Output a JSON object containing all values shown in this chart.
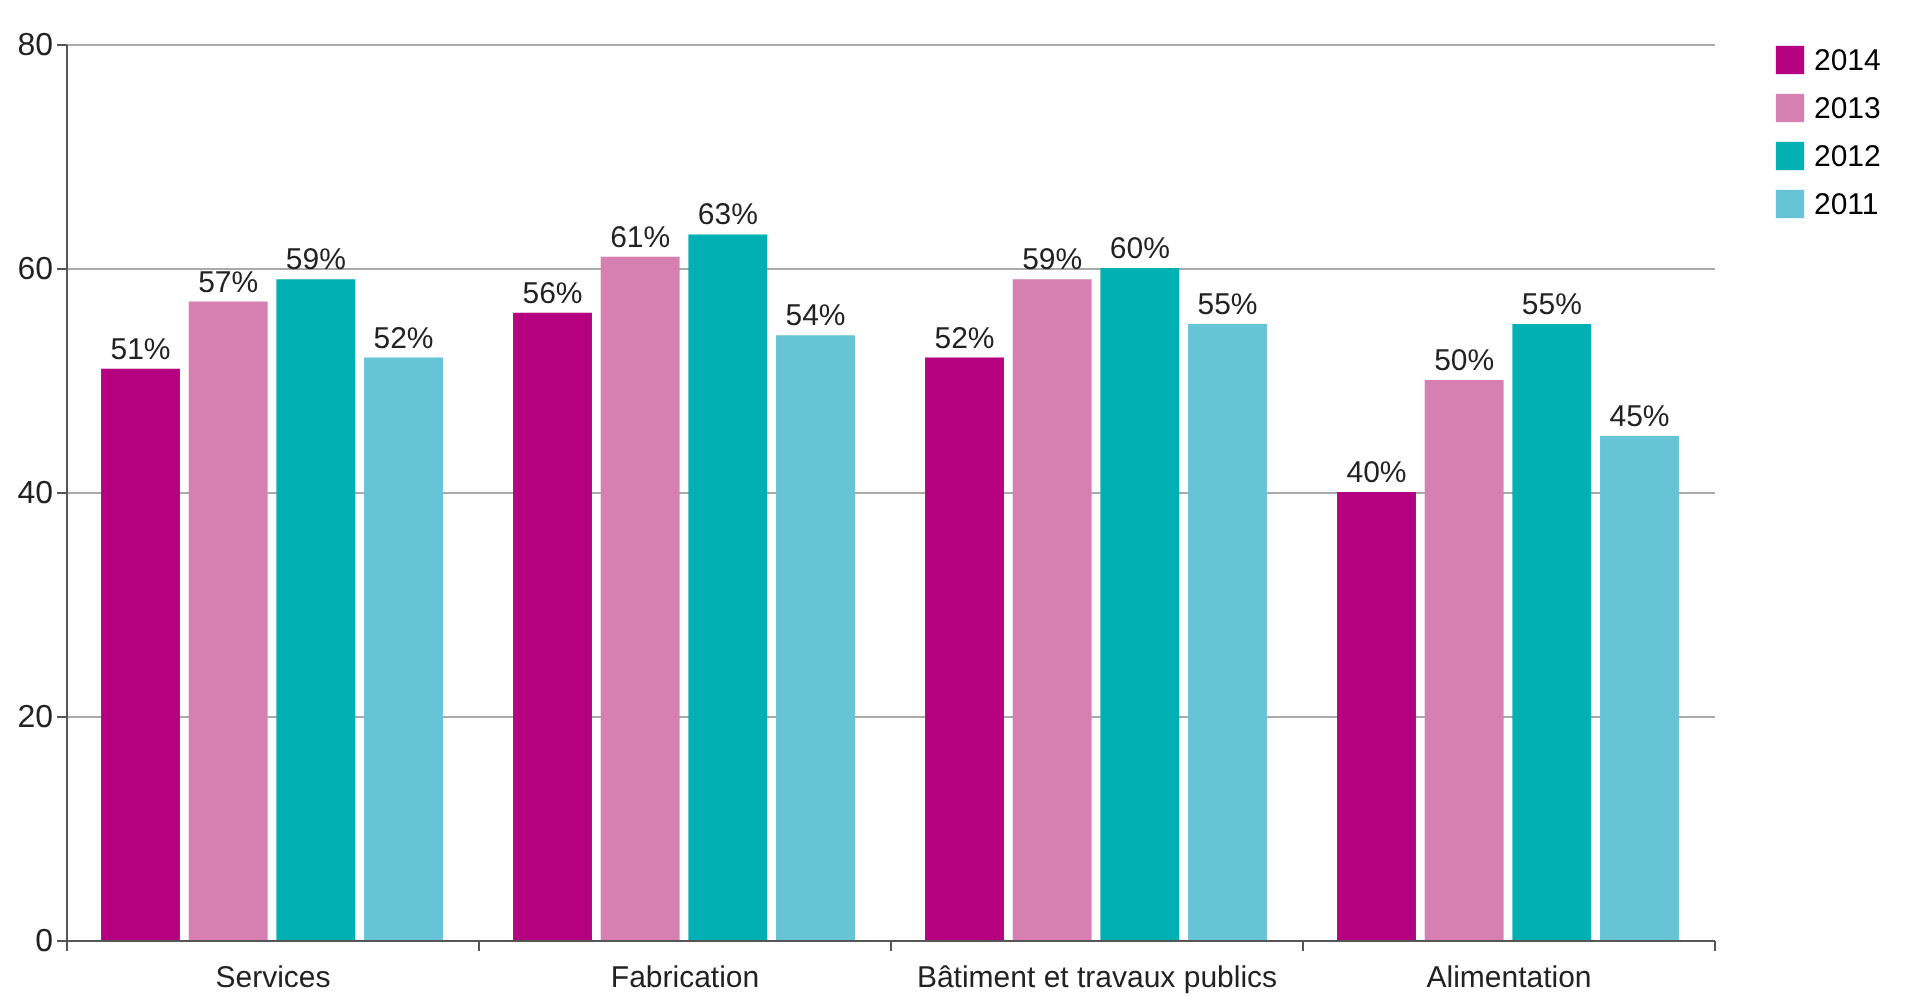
{
  "chart_data": {
    "type": "bar",
    "categories": [
      "Services",
      "Fabrication",
      "Bâtiment et travaux publics",
      "Alimentation"
    ],
    "series": [
      {
        "name": "2014",
        "color": "#b5007f",
        "values": [
          51,
          56,
          52,
          40
        ],
        "value_labels": [
          "51%",
          "56%",
          "52%",
          "40%"
        ]
      },
      {
        "name": "2013",
        "color": "#d580b0",
        "values": [
          57,
          61,
          59,
          50
        ],
        "value_labels": [
          "57%",
          "61%",
          "59%",
          "50%"
        ]
      },
      {
        "name": "2012",
        "color": "#00b0b2",
        "values": [
          59,
          63,
          60,
          55
        ],
        "value_labels": [
          "59%",
          "63%",
          "60%",
          "55%"
        ]
      },
      {
        "name": "2011",
        "color": "#66c4d6",
        "values": [
          52,
          54,
          55,
          45
        ],
        "value_labels": [
          "52%",
          "54%",
          "55%",
          "45%"
        ]
      }
    ],
    "ylim": [
      0,
      80
    ],
    "yticks": [
      0,
      20,
      40,
      60,
      80
    ],
    "grid": "y",
    "legend": "right"
  }
}
